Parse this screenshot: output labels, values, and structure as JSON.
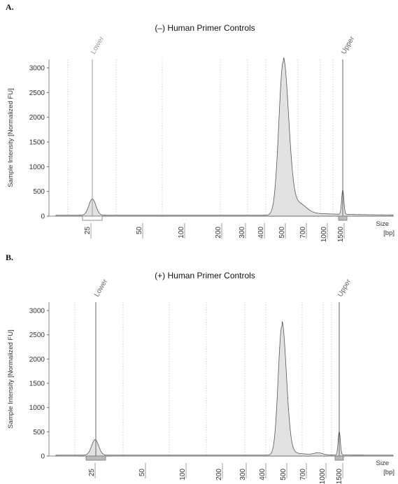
{
  "chart_data": [
    {
      "panel": "A.",
      "type": "area",
      "title": "(–) Human Primer Controls",
      "ylabel": "Sample Intensity [Normalized FU]",
      "xlabel": "Size",
      "xunit": "[bp]",
      "ylim": [
        0,
        3000
      ],
      "yticks": [
        0,
        500,
        1000,
        1500,
        2000,
        2500,
        3000
      ],
      "xticks": [
        "25",
        "50",
        "100",
        "200",
        "300",
        "400",
        "500",
        "700",
        "1000",
        "1500"
      ],
      "markers": [
        {
          "label": "Lower",
          "size": "25"
        },
        {
          "label": "Upper",
          "size": "1500"
        }
      ],
      "grid": true,
      "peaks": [
        {
          "size": 25,
          "value": 330
        },
        {
          "size": 530,
          "value": 3100
        },
        {
          "size": 1500,
          "value": 500
        }
      ]
    },
    {
      "panel": "B.",
      "type": "area",
      "title": "(+) Human Primer Controls",
      "ylabel": "Sample Intensity [Normalized FU]",
      "xlabel": "Size",
      "xunit": "[bp]",
      "ylim": [
        0,
        3000
      ],
      "yticks": [
        0,
        500,
        1000,
        1500,
        2000,
        2500,
        3000
      ],
      "xticks": [
        "25",
        "50",
        "100",
        "200",
        "300",
        "400",
        "500",
        "700",
        "1000",
        "1500"
      ],
      "markers": [
        {
          "label": "Lower",
          "size": "25"
        },
        {
          "label": "Upper",
          "size": "1500"
        }
      ],
      "grid": true,
      "peaks": [
        {
          "size": 25,
          "value": 320
        },
        {
          "size": 550,
          "value": 2660
        },
        {
          "size": 1500,
          "value": 490
        }
      ]
    }
  ]
}
